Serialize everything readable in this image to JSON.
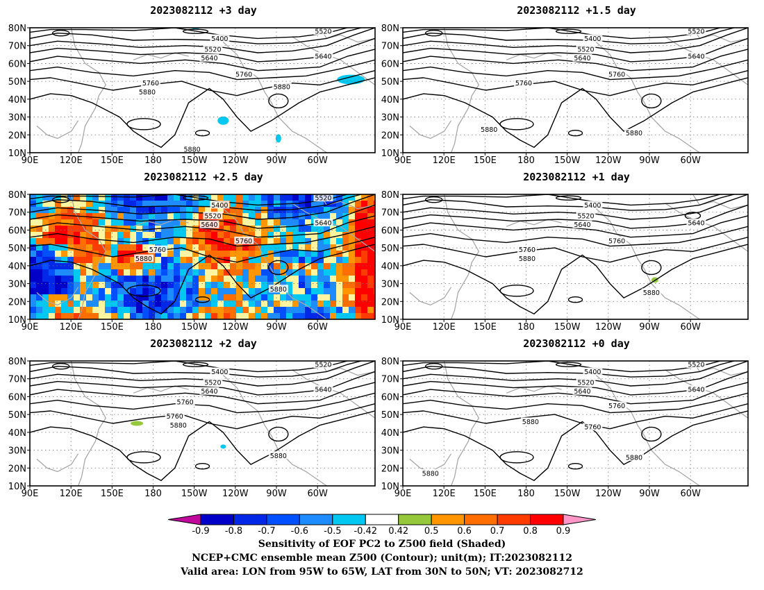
{
  "panels": [
    {
      "title": "2023082112 +3 day",
      "shaded": "light",
      "clabels": [
        [
          "5520",
          -0.85,
          78
        ],
        [
          "5400",
          0.55,
          74
        ],
        [
          "5520",
          0.53,
          68
        ],
        [
          "5640",
          0.52,
          63
        ],
        [
          "5640",
          -0.85,
          64
        ],
        [
          "5760",
          0.62,
          54
        ],
        [
          "5760",
          -0.35,
          49
        ],
        [
          "5880",
          -0.34,
          44
        ],
        [
          "5880",
          0.73,
          47
        ],
        [
          "5880",
          0.47,
          12
        ]
      ]
    },
    {
      "title": "2023082112 +1.5 day",
      "shaded": "none",
      "clabels": [
        [
          "5520",
          -0.85,
          78
        ],
        [
          "5400",
          0.55,
          74
        ],
        [
          "5520",
          0.53,
          68
        ],
        [
          "5640",
          0.52,
          63
        ],
        [
          "5640",
          -0.85,
          64
        ],
        [
          "5760",
          0.62,
          54
        ],
        [
          "5760",
          -0.35,
          49
        ],
        [
          "5880",
          0.67,
          21
        ],
        [
          "5880",
          -0.25,
          23
        ]
      ]
    },
    {
      "title": "2023082112 +2.5 day",
      "shaded": "heavy",
      "clabels": [
        [
          "5520",
          -0.85,
          78
        ],
        [
          "5400",
          0.55,
          74
        ],
        [
          "5520",
          0.53,
          68
        ],
        [
          "5640",
          0.52,
          63
        ],
        [
          "5640",
          -0.85,
          64
        ],
        [
          "5760",
          0.62,
          54
        ],
        [
          "5760",
          -0.37,
          49
        ],
        [
          "5880",
          -0.33,
          44
        ],
        [
          "5880",
          0.72,
          27
        ]
      ]
    },
    {
      "title": "2023082112 +1 day",
      "shaded": "tiny",
      "clabels": [
        [
          "5400",
          0.55,
          74
        ],
        [
          "5520",
          0.53,
          68
        ],
        [
          "5640",
          0.52,
          63
        ],
        [
          "5640",
          -0.85,
          64
        ],
        [
          "5760",
          0.62,
          54
        ],
        [
          "5760",
          -0.36,
          49
        ],
        [
          "5880",
          -0.36,
          44
        ],
        [
          "5880",
          0.72,
          25
        ]
      ]
    },
    {
      "title": "2023082112 +2 day",
      "shaded": "few",
      "clabels": [
        [
          "5520",
          -0.85,
          78
        ],
        [
          "5400",
          0.55,
          74
        ],
        [
          "5520",
          0.53,
          68
        ],
        [
          "5640",
          0.52,
          63
        ],
        [
          "5640",
          -0.85,
          64
        ],
        [
          "5760",
          0.45,
          57
        ],
        [
          "5760",
          -0.42,
          49
        ],
        [
          "5880",
          -0.43,
          44
        ],
        [
          "5880",
          0.72,
          27
        ]
      ]
    },
    {
      "title": "2023082112 +0 day",
      "shaded": "none",
      "clabels": [
        [
          "5520",
          -0.85,
          78
        ],
        [
          "5400",
          0.55,
          74
        ],
        [
          "5520",
          0.53,
          68
        ],
        [
          "5640",
          0.52,
          63
        ],
        [
          "5640",
          -0.85,
          64
        ],
        [
          "5760",
          0.62,
          55
        ],
        [
          "5880",
          -0.37,
          46
        ],
        [
          "5760",
          -0.55,
          43
        ],
        [
          "5880",
          0.67,
          26
        ],
        [
          "5880",
          -0.08,
          17
        ]
      ]
    }
  ],
  "axes": {
    "lat_labels": [
      "10N",
      "20N",
      "30N",
      "40N",
      "50N",
      "60N",
      "70N",
      "80N"
    ],
    "lon_labels": [
      "90E",
      "120E",
      "150E",
      "180",
      "150W",
      "120W",
      "90W",
      "60W"
    ]
  },
  "colorbar": {
    "labels": [
      "-0.9",
      "-0.8",
      "-0.7",
      "-0.6",
      "-0.5",
      "-0.42",
      "0.42",
      "0.5",
      "0.6",
      "0.7",
      "0.8",
      "0.9"
    ],
    "colors": [
      "#c0089c",
      "#0000c8",
      "#0028e6",
      "#0050ff",
      "#1e8cff",
      "#00c8f0",
      "#ffffff",
      "#96c83c",
      "#ff9600",
      "#ff6e00",
      "#ff3c00",
      "#ff0000",
      "#ff96c8"
    ]
  },
  "footer": [
    "Sensitivity of EOF PC2 to Z500 field (Shaded)",
    "NCEP+CMC ensemble mean Z500 (Contour); unit(m); IT:2023082112",
    "Valid area: LON from 95W to 65W, LAT from 30N to 50N; VT: 2023082712"
  ]
}
